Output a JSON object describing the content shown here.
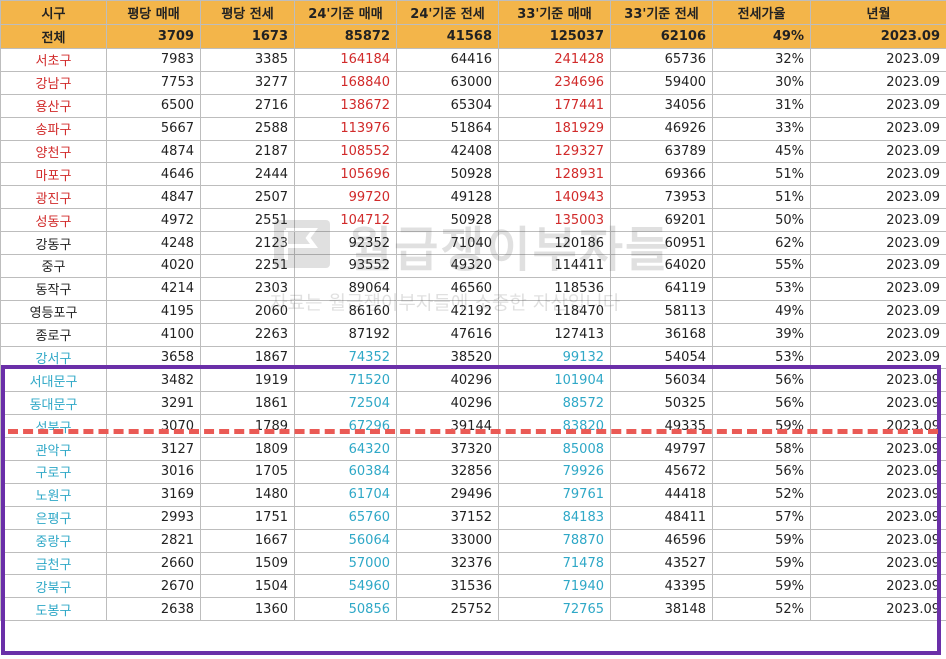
{
  "columns": [
    "시구",
    "평당 매매",
    "평당 전세",
    "24'기준 매매",
    "24'기준 전세",
    "33'기준 매매",
    "33'기준 전세",
    "전세가율",
    "년월"
  ],
  "total": {
    "district": "전체",
    "values": [
      "3709",
      "1673",
      "85872",
      "41568",
      "125037",
      "62106",
      "49%",
      "2023.09"
    ]
  },
  "rows": [
    {
      "district": "서초구",
      "group": "red",
      "values": [
        "7983",
        "3385",
        "164184",
        "64416",
        "241428",
        "65736",
        "32%",
        "2023.09"
      ]
    },
    {
      "district": "강남구",
      "group": "red",
      "values": [
        "7753",
        "3277",
        "168840",
        "63000",
        "234696",
        "59400",
        "30%",
        "2023.09"
      ]
    },
    {
      "district": "용산구",
      "group": "red",
      "values": [
        "6500",
        "2716",
        "138672",
        "65304",
        "177441",
        "34056",
        "31%",
        "2023.09"
      ]
    },
    {
      "district": "송파구",
      "group": "red",
      "values": [
        "5667",
        "2588",
        "113976",
        "51864",
        "181929",
        "46926",
        "33%",
        "2023.09"
      ]
    },
    {
      "district": "양천구",
      "group": "red",
      "values": [
        "4874",
        "2187",
        "108552",
        "42408",
        "129327",
        "63789",
        "45%",
        "2023.09"
      ]
    },
    {
      "district": "마포구",
      "group": "red",
      "values": [
        "4646",
        "2444",
        "105696",
        "50928",
        "128931",
        "69366",
        "51%",
        "2023.09"
      ]
    },
    {
      "district": "광진구",
      "group": "red",
      "values": [
        "4847",
        "2507",
        "99720",
        "49128",
        "140943",
        "73953",
        "51%",
        "2023.09"
      ]
    },
    {
      "district": "성동구",
      "group": "red",
      "values": [
        "4972",
        "2551",
        "104712",
        "50928",
        "135003",
        "69201",
        "50%",
        "2023.09"
      ]
    },
    {
      "district": "강동구",
      "group": "black",
      "values": [
        "4248",
        "2123",
        "92352",
        "71040",
        "120186",
        "60951",
        "62%",
        "2023.09"
      ]
    },
    {
      "district": "중구",
      "group": "black",
      "values": [
        "4020",
        "2251",
        "93552",
        "49320",
        "114411",
        "64020",
        "55%",
        "2023.09"
      ]
    },
    {
      "district": "동작구",
      "group": "black",
      "values": [
        "4214",
        "2303",
        "89064",
        "46560",
        "118536",
        "64119",
        "53%",
        "2023.09"
      ]
    },
    {
      "district": "영등포구",
      "group": "black",
      "values": [
        "4195",
        "2060",
        "86160",
        "42192",
        "118470",
        "58113",
        "49%",
        "2023.09"
      ]
    },
    {
      "district": "종로구",
      "group": "black",
      "values": [
        "4100",
        "2263",
        "87192",
        "47616",
        "127413",
        "36168",
        "39%",
        "2023.09"
      ]
    },
    {
      "district": "강서구",
      "group": "blue",
      "values": [
        "3658",
        "1867",
        "74352",
        "38520",
        "99132",
        "54054",
        "53%",
        "2023.09"
      ]
    },
    {
      "district": "서대문구",
      "group": "blue",
      "values": [
        "3482",
        "1919",
        "71520",
        "40296",
        "101904",
        "56034",
        "56%",
        "2023.09"
      ]
    },
    {
      "district": "동대문구",
      "group": "blue",
      "values": [
        "3291",
        "1861",
        "72504",
        "40296",
        "88572",
        "50325",
        "56%",
        "2023.09"
      ]
    },
    {
      "district": "성북구",
      "group": "blue",
      "values": [
        "3070",
        "1789",
        "67296",
        "39144",
        "83820",
        "49335",
        "59%",
        "2023.09"
      ]
    },
    {
      "district": "관악구",
      "group": "blue",
      "values": [
        "3127",
        "1809",
        "64320",
        "37320",
        "85008",
        "49797",
        "58%",
        "2023.09"
      ]
    },
    {
      "district": "구로구",
      "group": "blue",
      "values": [
        "3016",
        "1705",
        "60384",
        "32856",
        "79926",
        "45672",
        "56%",
        "2023.09"
      ]
    },
    {
      "district": "노원구",
      "group": "blue",
      "values": [
        "3169",
        "1480",
        "61704",
        "29496",
        "79761",
        "44418",
        "52%",
        "2023.09"
      ]
    },
    {
      "district": "은평구",
      "group": "blue",
      "values": [
        "2993",
        "1751",
        "65760",
        "37152",
        "84183",
        "48411",
        "57%",
        "2023.09"
      ]
    },
    {
      "district": "중랑구",
      "group": "blue",
      "values": [
        "2821",
        "1667",
        "56064",
        "33000",
        "78870",
        "46596",
        "59%",
        "2023.09"
      ]
    },
    {
      "district": "금천구",
      "group": "blue",
      "values": [
        "2660",
        "1509",
        "57000",
        "32376",
        "71478",
        "43527",
        "59%",
        "2023.09"
      ]
    },
    {
      "district": "강북구",
      "group": "blue",
      "values": [
        "2670",
        "1504",
        "54960",
        "31536",
        "71940",
        "43395",
        "59%",
        "2023.09"
      ]
    },
    {
      "district": "도봉구",
      "group": "blue",
      "values": [
        "2638",
        "1360",
        "50856",
        "25752",
        "72765",
        "38148",
        "52%",
        "2023.09"
      ]
    }
  ],
  "highlighted_columns": [
    2,
    4
  ],
  "colors": {
    "header_bg": "#f3b54a",
    "red": "#d12a2a",
    "blue": "#2fa8c7",
    "box": "#6a2fa8",
    "dash": "#ea5a55"
  },
  "watermark": {
    "title": "월급쟁이부자들",
    "subtitle": "자료는 월급쟁이부자들에 소중한 자산입니다",
    "logo_icon": "flag-icon"
  }
}
